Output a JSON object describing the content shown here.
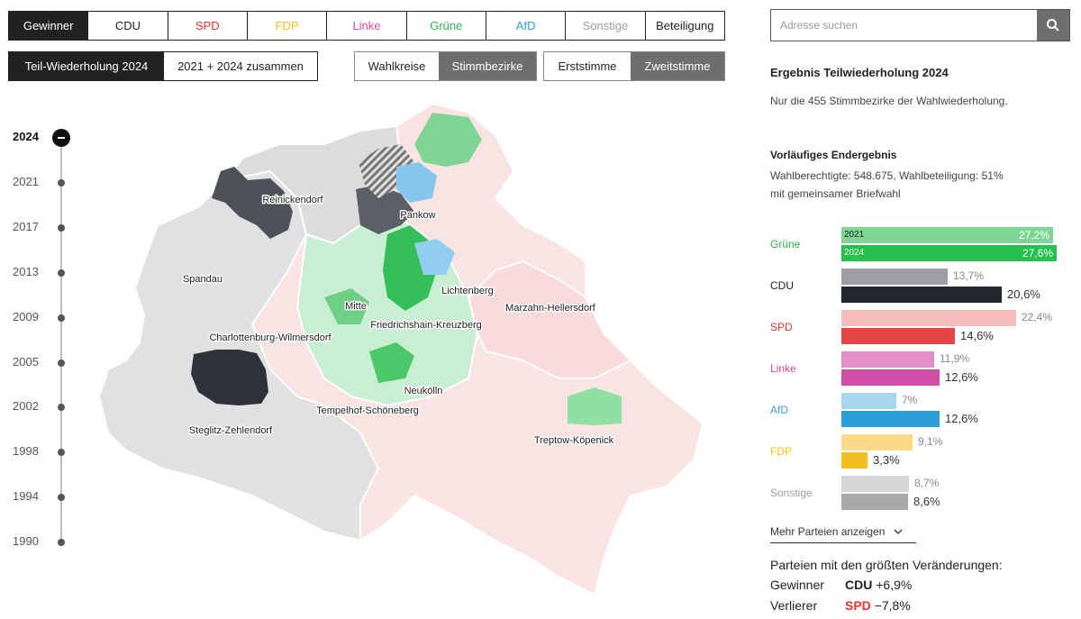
{
  "party_tabs": [
    {
      "label": "Gewinner",
      "color": "#ffffff",
      "active": true
    },
    {
      "label": "CDU",
      "color": "#222222"
    },
    {
      "label": "SPD",
      "color": "#e3342f"
    },
    {
      "label": "FDP",
      "color": "#f0c419"
    },
    {
      "label": "Linke",
      "color": "#d4499e"
    },
    {
      "label": "Grüne",
      "color": "#2fb14a"
    },
    {
      "label": "AfD",
      "color": "#2f9fd8"
    },
    {
      "label": "Sonstige",
      "color": "#9e9e9e"
    },
    {
      "label": "Beteiligung",
      "color": "#222222"
    }
  ],
  "election_modes": [
    {
      "label": "Teil-Wiederholung 2024",
      "active": true
    },
    {
      "label": "2021 + 2024 zusammen"
    }
  ],
  "area_modes": [
    {
      "label": "Wahlkreise"
    },
    {
      "label": "Stimmbezirke",
      "active": true
    }
  ],
  "vote_modes": [
    {
      "label": "Erststimme"
    },
    {
      "label": "Zweitstimme",
      "active": true
    }
  ],
  "timeline": {
    "years": [
      "2024",
      "2021",
      "2017",
      "2013",
      "2009",
      "2005",
      "2002",
      "1998",
      "1994",
      "1990"
    ],
    "active": "2024"
  },
  "map": {
    "districts": [
      "Reinickendorf",
      "Pankow",
      "Spandau",
      "Mitte",
      "Lichtenberg",
      "Marzahn-Hellersdorf",
      "Charlottenburg-Wilmersdorf",
      "Friedrichshain-Kreuzberg",
      "Neukölln",
      "Tempelhof-Schöneberg",
      "Steglitz-Zehlendorf",
      "Treptow-Köpenick"
    ]
  },
  "search": {
    "placeholder": "Adresse suchen",
    "icon": "search-icon"
  },
  "result": {
    "title": "Ergebnis Teilwiederholung 2024",
    "subtitle": "Nur die 455 Stimmbezirke der Wahlwiederholung.",
    "status": "Vorläufiges Endergebnis",
    "eligible": "Wahlberechtigte: 548.675, Wahlbeteiligung: 51%",
    "note": "mit gemeinsamer Briefwahl"
  },
  "chart_data": {
    "type": "bar",
    "categories": [
      "Grüne",
      "CDU",
      "SPD",
      "Linke",
      "AfD",
      "FDP",
      "Sonstige"
    ],
    "series": [
      {
        "name": "2021",
        "values": [
          27.2,
          13.7,
          22.4,
          11.9,
          7,
          9.1,
          8.7
        ]
      },
      {
        "name": "2024",
        "values": [
          27.6,
          20.6,
          14.6,
          12.6,
          12.6,
          3.3,
          8.6
        ]
      }
    ],
    "value_labels_2021": [
      "27,2%",
      "13,7%",
      "22,4%",
      "11,9%",
      "7%",
      "9,1%",
      "8,7%"
    ],
    "value_labels_2024": [
      "27,6%",
      "20,6%",
      "14,6%",
      "12,6%",
      "12,6%",
      "3,3%",
      "8,6%"
    ],
    "colors_2021": [
      "#7fd694",
      "#9e9ea4",
      "#f6bfbf",
      "#e38fc8",
      "#a8d6ef",
      "#f8da88",
      "#d6d6d6"
    ],
    "colors_2024": [
      "#26c04e",
      "#222630",
      "#e44545",
      "#d14ea8",
      "#2c9fd8",
      "#f0bf22",
      "#a9a9a9"
    ],
    "label_colors": [
      "#2fb14a",
      "#222222",
      "#e3342f",
      "#d4499e",
      "#2f9fd8",
      "#f0c419",
      "#9e9e9e"
    ],
    "xlim": [
      0,
      28
    ]
  },
  "more_link": "Mehr Parteien anzeigen",
  "changes": {
    "title": "Parteien mit den größten Veränderungen:",
    "winner_label": "Gewinner",
    "winner_party": "CDU",
    "winner_value": "+6,9%",
    "winner_color": "#222222",
    "loser_label": "Verlierer",
    "loser_party": "SPD",
    "loser_value": "−7,8%",
    "loser_color": "#e3342f"
  }
}
